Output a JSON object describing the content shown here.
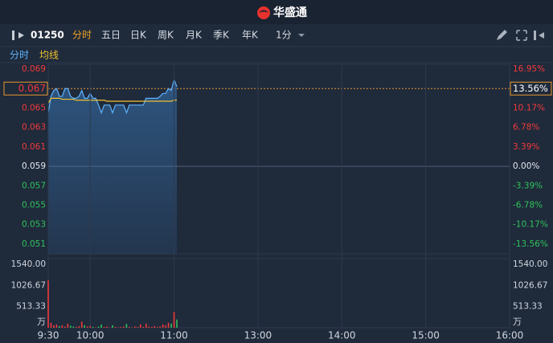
{
  "header": {
    "title": "华盛通"
  },
  "toolbar": {
    "code": "01250",
    "tabs": [
      "分时",
      "五日",
      "日K",
      "周K",
      "月K",
      "季K",
      "年K"
    ],
    "interval": "1分"
  },
  "chart_data": [
    {
      "type": "line",
      "x": [
        0,
        2,
        4,
        6,
        8,
        10,
        12,
        14,
        16,
        18,
        20,
        22,
        24,
        26,
        28,
        30,
        32,
        34,
        36,
        38,
        40,
        42,
        44,
        46,
        48,
        50,
        52,
        54,
        56,
        58,
        60,
        62,
        64,
        66,
        68,
        70,
        72,
        74,
        76,
        78,
        80,
        82,
        84,
        86,
        88,
        90,
        92
      ],
      "series": [
        {
          "name": "分时",
          "color": "#5fb4ff",
          "values": [
            0.0645,
            0.0662,
            0.0668,
            0.067,
            0.0662,
            0.0662,
            0.067,
            0.067,
            0.0662,
            0.066,
            0.066,
            0.0662,
            0.0668,
            0.066,
            0.066,
            0.0665,
            0.066,
            0.066,
            0.0653,
            0.0645,
            0.0653,
            0.0653,
            0.0653,
            0.0645,
            0.0653,
            0.0653,
            0.0653,
            0.0653,
            0.0645,
            0.0653,
            0.0653,
            0.0653,
            0.0653,
            0.0653,
            0.0653,
            0.066,
            0.066,
            0.066,
            0.066,
            0.066,
            0.0662,
            0.0665,
            0.0665,
            0.067,
            0.0668,
            0.0679,
            0.0672
          ]
        },
        {
          "name": "均线",
          "color": "#f0c030",
          "values": [
            0.0655,
            0.066,
            0.066,
            0.066,
            0.066,
            0.0659,
            0.0659,
            0.0659,
            0.0659,
            0.0659,
            0.0658,
            0.0658,
            0.0658,
            0.0658,
            0.0658,
            0.0658,
            0.0658,
            0.0658,
            0.0658,
            0.0658,
            0.0658,
            0.0657,
            0.0657,
            0.0657,
            0.0657,
            0.0657,
            0.0657,
            0.0657,
            0.0657,
            0.0657,
            0.0657,
            0.0657,
            0.0657,
            0.0657,
            0.0657,
            0.0657,
            0.0657,
            0.0657,
            0.0657,
            0.0657,
            0.0657,
            0.0657,
            0.0657,
            0.0657,
            0.0657,
            0.0658,
            0.0658
          ]
        }
      ],
      "ylim": [
        0.05,
        0.0695
      ],
      "yticks": [
        0.069,
        0.065,
        0.063,
        0.061,
        0.059,
        0.057,
        0.055,
        0.053,
        0.051
      ],
      "y2lim": [
        -15.25,
        17.8
      ],
      "y2ticks": [
        {
          "value": 16.95,
          "label": "16.95%"
        },
        {
          "value": 10.17,
          "label": "10.17%"
        },
        {
          "value": 6.78,
          "label": "6.78%"
        },
        {
          "value": 3.39,
          "label": "3.39%"
        },
        {
          "value": 0,
          "label": "0.00%"
        },
        {
          "value": -3.39,
          "label": "-3.39%"
        },
        {
          "value": -6.78,
          "label": "-6.78%"
        },
        {
          "value": -10.17,
          "label": "-10.17%"
        },
        {
          "value": -13.56,
          "label": "-13.56%"
        }
      ],
      "current": {
        "price": 0.067,
        "change": {
          "value": 13.56,
          "label": "13.56%"
        }
      },
      "xlim": [
        0,
        330
      ],
      "grid": "x"
    },
    {
      "type": "volume",
      "unit": "万",
      "x": [
        0,
        2,
        4,
        6,
        8,
        10,
        12,
        14,
        16,
        18,
        20,
        22,
        24,
        26,
        28,
        30,
        32,
        34,
        36,
        38,
        40,
        42,
        44,
        46,
        48,
        50,
        52,
        54,
        56,
        58,
        60,
        62,
        64,
        66,
        68,
        70,
        72,
        74,
        76,
        78,
        80,
        82,
        84,
        86,
        88,
        90,
        92
      ],
      "values": [
        1150,
        120,
        60,
        80,
        40,
        60,
        30,
        100,
        50,
        30,
        20,
        40,
        150,
        60,
        30,
        40,
        20,
        10,
        30,
        80,
        20,
        30,
        10,
        60,
        20,
        10,
        20,
        30,
        90,
        20,
        10,
        30,
        20,
        80,
        20,
        100,
        30,
        20,
        40,
        20,
        30,
        80,
        60,
        120,
        100,
        380,
        200
      ],
      "up_color": "#f03a3a",
      "down_color": "#2fc25b",
      "ylim": [
        0,
        1540
      ],
      "yticks": [
        {
          "value": 1540,
          "label": "1540.00"
        },
        {
          "value": 1026.67,
          "label": "1026.67"
        },
        {
          "value": 513.33,
          "label": "513.33"
        }
      ],
      "xlim": [
        0,
        330
      ],
      "xticks": [
        {
          "value": 0,
          "label": "9:30"
        },
        {
          "value": 30,
          "label": "10:00"
        },
        {
          "value": 90,
          "label": "11:00"
        },
        {
          "value": 150,
          "label": "13:00"
        },
        {
          "value": 210,
          "label": "14:00"
        },
        {
          "value": 270,
          "label": "15:00"
        },
        {
          "value": 330,
          "label": "16:00"
        }
      ]
    }
  ]
}
